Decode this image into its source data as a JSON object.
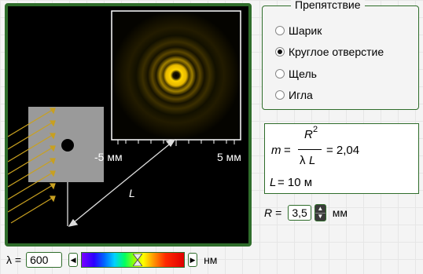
{
  "scene": {
    "scale_left_label": "-5 мм",
    "scale_right_label": "5 мм",
    "distance_label": "L"
  },
  "obstacle": {
    "legend": "Препятствие",
    "options": [
      {
        "label": "Шарик",
        "selected": false
      },
      {
        "label": "Круглое отверстие",
        "selected": true
      },
      {
        "label": "Щель",
        "selected": false
      },
      {
        "label": "Игла",
        "selected": false
      }
    ]
  },
  "formula": {
    "m": "m",
    "equals": "=",
    "R": "R",
    "power": "2",
    "lambda": "λ",
    "L": "L",
    "result": "= 2,04",
    "distance_var": "L",
    "distance_value": "= 10 м"
  },
  "radius": {
    "label": "R",
    "equals": "=",
    "value": "3,5",
    "unit": "мм"
  },
  "wavelength": {
    "label": "λ =",
    "value": "600",
    "unit": "нм",
    "slider_fraction": 0.55
  },
  "colors": {
    "frame": "#2f6d2b",
    "pattern": "#ffcc00",
    "rays": "#c8a020"
  }
}
